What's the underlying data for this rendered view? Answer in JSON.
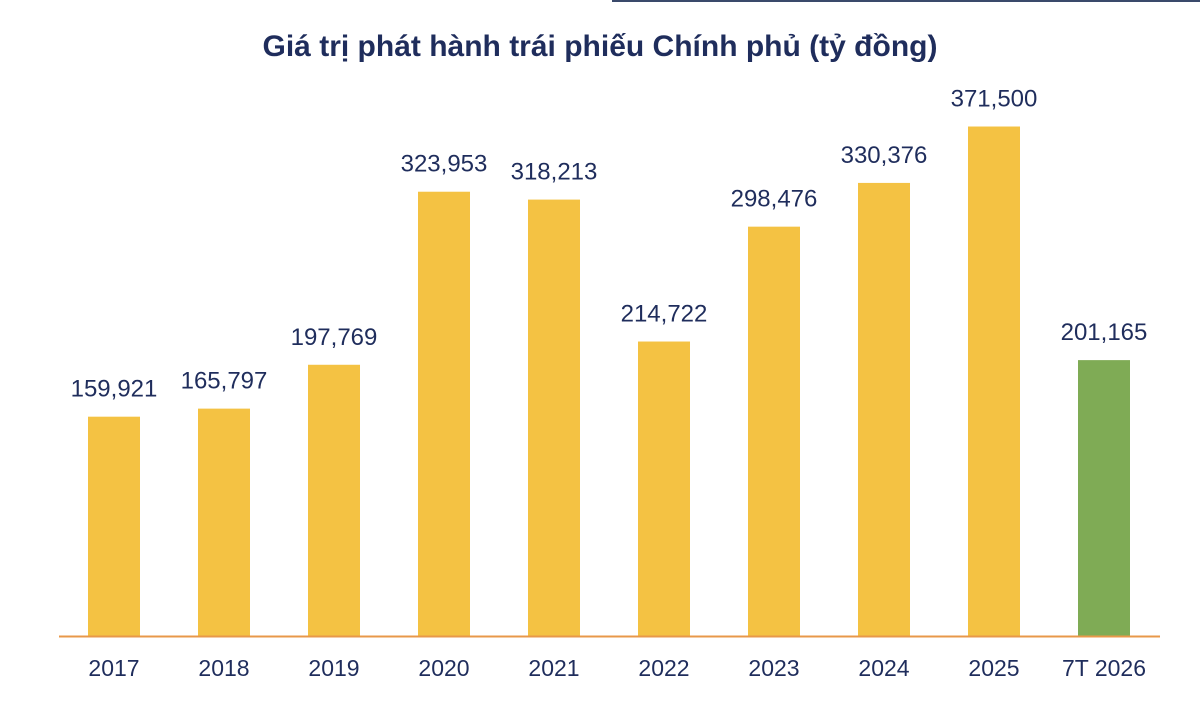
{
  "chart_data": {
    "type": "bar",
    "title": "Giá trị phát hành trái phiếu Chính phủ (tỷ đồng)",
    "categories": [
      "2017",
      "2018",
      "2019",
      "2020",
      "2021",
      "2022",
      "2023",
      "2024",
      "2025",
      "7T 2026"
    ],
    "values": [
      159921,
      165797,
      197769,
      323953,
      318213,
      214722,
      298476,
      330376,
      371500,
      201165
    ],
    "value_labels": [
      "159,921",
      "165,797",
      "197,769",
      "323,953",
      "318,213",
      "214,722",
      "298,476",
      "330,376",
      "371,500",
      "201,165"
    ],
    "colors": [
      "#F4C243",
      "#F4C243",
      "#F4C243",
      "#F4C243",
      "#F4C243",
      "#F4C243",
      "#F4C243",
      "#F4C243",
      "#F4C243",
      "#7FAB55"
    ],
    "axis_color": "#E8984A",
    "ylim": [
      0,
      420000
    ],
    "grid": false,
    "legend": "none"
  }
}
